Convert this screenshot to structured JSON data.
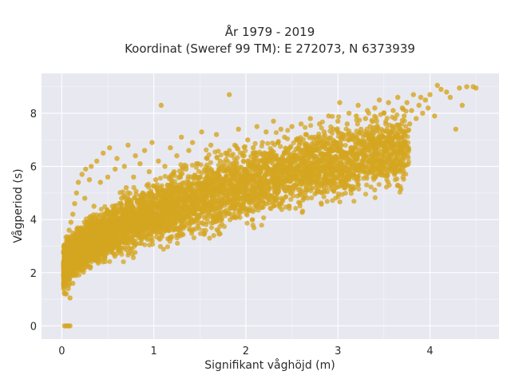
{
  "chart_data": {
    "type": "scatter",
    "title_lines": [
      "År 1979 - 2019",
      "Koordinat (Sweref 99 TM): E 272073, N 6373939"
    ],
    "xlabel": "Signifikant våghöjd (m)",
    "ylabel": "Vågperiod (s)",
    "xlim": [
      -0.22,
      4.75
    ],
    "ylim": [
      -0.5,
      9.5
    ],
    "x_ticks": [
      0,
      1,
      2,
      3,
      4
    ],
    "y_ticks": [
      0,
      2,
      4,
      6,
      8
    ],
    "grid": true,
    "background": "#e8e8f0",
    "grid_color": "#ffffff",
    "marker_color": "#d4a520",
    "relationship": "wave period rises steeply at low wave heights and levels off; dense cloud from ~1 to ~9 s",
    "points": [
      [
        0.02,
        1.55
      ],
      [
        0.03,
        2.1
      ],
      [
        0.04,
        1.8
      ],
      [
        0.05,
        2.6
      ],
      [
        0.05,
        1.2
      ],
      [
        0.06,
        3.2
      ],
      [
        0.07,
        1.4
      ],
      [
        0.08,
        3.6
      ],
      [
        0.08,
        2.2
      ],
      [
        0.09,
        1.05
      ],
      [
        0.1,
        3.9
      ],
      [
        0.1,
        2.8
      ],
      [
        0.12,
        4.2
      ],
      [
        0.12,
        1.6
      ],
      [
        0.14,
        4.6
      ],
      [
        0.15,
        3.1
      ],
      [
        0.16,
        5.0
      ],
      [
        0.17,
        2.2
      ],
      [
        0.18,
        5.4
      ],
      [
        0.2,
        3.5
      ],
      [
        0.22,
        5.7
      ],
      [
        0.23,
        2.6
      ],
      [
        0.25,
        4.8
      ],
      [
        0.26,
        5.9
      ],
      [
        0.28,
        3.2
      ],
      [
        0.3,
        5.5
      ],
      [
        0.32,
        6.0
      ],
      [
        0.33,
        3.6
      ],
      [
        0.35,
        4.5
      ],
      [
        0.38,
        6.2
      ],
      [
        0.4,
        3.9
      ],
      [
        0.42,
        5.4
      ],
      [
        0.45,
        6.5
      ],
      [
        0.48,
        4.2
      ],
      [
        0.5,
        5.6
      ],
      [
        0.52,
        6.7
      ],
      [
        0.55,
        4.5
      ],
      [
        0.58,
        5.9
      ],
      [
        0.6,
        6.3
      ],
      [
        0.62,
        3.1
      ],
      [
        0.65,
        4.8
      ],
      [
        0.68,
        6.0
      ],
      [
        0.7,
        5.2
      ],
      [
        0.72,
        6.8
      ],
      [
        0.75,
        3.6
      ],
      [
        0.78,
        5.6
      ],
      [
        0.8,
        6.4
      ],
      [
        0.82,
        4.7
      ],
      [
        0.85,
        6.1
      ],
      [
        0.88,
        5.0
      ],
      [
        0.9,
        6.6
      ],
      [
        0.92,
        4.0
      ],
      [
        0.95,
        5.8
      ],
      [
        0.98,
        6.9
      ],
      [
        1.0,
        4.6
      ],
      [
        1.02,
        5.5
      ],
      [
        1.05,
        6.2
      ],
      [
        1.08,
        8.3
      ],
      [
        1.1,
        4.8
      ],
      [
        1.12,
        6.0
      ],
      [
        1.15,
        5.3
      ],
      [
        1.18,
        6.7
      ],
      [
        1.2,
        4.6
      ],
      [
        1.22,
        5.8
      ],
      [
        1.25,
        6.4
      ],
      [
        1.28,
        5.0
      ],
      [
        1.3,
        7.1
      ],
      [
        1.32,
        4.4
      ],
      [
        1.35,
        5.9
      ],
      [
        1.38,
        6.6
      ],
      [
        1.4,
        5.2
      ],
      [
        1.42,
        6.9
      ],
      [
        1.45,
        4.8
      ],
      [
        1.48,
        6.1
      ],
      [
        1.5,
        5.6
      ],
      [
        1.52,
        7.3
      ],
      [
        1.55,
        4.6
      ],
      [
        1.58,
        6.3
      ],
      [
        1.6,
        5.4
      ],
      [
        1.62,
        6.8
      ],
      [
        1.65,
        5.1
      ],
      [
        1.68,
        7.2
      ],
      [
        1.7,
        5.7
      ],
      [
        1.72,
        6.2
      ],
      [
        1.75,
        5.0
      ],
      [
        1.78,
        6.5
      ],
      [
        1.8,
        5.9
      ],
      [
        1.82,
        8.7
      ],
      [
        1.85,
        5.3
      ],
      [
        1.88,
        6.8
      ],
      [
        1.9,
        6.1
      ],
      [
        1.92,
        7.4
      ],
      [
        1.95,
        5.6
      ],
      [
        1.98,
        6.4
      ],
      [
        2.0,
        5.9
      ],
      [
        2.02,
        7.0
      ],
      [
        2.05,
        5.4
      ],
      [
        2.08,
        6.7
      ],
      [
        2.1,
        6.2
      ],
      [
        2.12,
        7.5
      ],
      [
        2.15,
        5.8
      ],
      [
        2.18,
        6.9
      ],
      [
        2.2,
        6.3
      ],
      [
        2.22,
        7.3
      ],
      [
        2.25,
        5.9
      ],
      [
        2.28,
        6.6
      ],
      [
        2.3,
        7.7
      ],
      [
        2.32,
        6.0
      ],
      [
        2.35,
        6.9
      ],
      [
        2.38,
        7.4
      ],
      [
        2.4,
        6.3
      ],
      [
        2.42,
        7.1
      ],
      [
        2.45,
        5.9
      ],
      [
        2.48,
        6.7
      ],
      [
        2.5,
        7.5
      ],
      [
        2.52,
        6.4
      ],
      [
        2.55,
        7.0
      ],
      [
        2.58,
        6.8
      ],
      [
        2.6,
        7.6
      ],
      [
        2.62,
        6.3
      ],
      [
        2.65,
        7.2
      ],
      [
        2.68,
        6.6
      ],
      [
        2.7,
        7.8
      ],
      [
        2.72,
        6.5
      ],
      [
        2.75,
        7.1
      ],
      [
        2.78,
        6.9
      ],
      [
        2.8,
        7.6
      ],
      [
        2.82,
        6.2
      ],
      [
        2.85,
        7.3
      ],
      [
        2.88,
        7.0
      ],
      [
        2.9,
        7.9
      ],
      [
        2.92,
        6.6
      ],
      [
        2.95,
        7.4
      ],
      [
        2.98,
        6.8
      ],
      [
        3.0,
        7.7
      ],
      [
        3.02,
        8.4
      ],
      [
        3.05,
        7.1
      ],
      [
        3.08,
        6.5
      ],
      [
        3.1,
        7.6
      ],
      [
        3.12,
        8.0
      ],
      [
        3.15,
        7.2
      ],
      [
        3.18,
        6.7
      ],
      [
        3.2,
        7.9
      ],
      [
        3.22,
        8.3
      ],
      [
        3.25,
        7.4
      ],
      [
        3.28,
        6.3
      ],
      [
        3.3,
        7.8
      ],
      [
        3.32,
        8.1
      ],
      [
        3.35,
        7.5
      ],
      [
        3.38,
        6.9
      ],
      [
        3.4,
        8.2
      ],
      [
        3.42,
        7.7
      ],
      [
        3.45,
        8.5
      ],
      [
        3.48,
        7.1
      ],
      [
        3.5,
        8.0
      ],
      [
        3.52,
        7.6
      ],
      [
        3.55,
        8.4
      ],
      [
        3.58,
        7.3
      ],
      [
        3.6,
        8.1
      ],
      [
        3.62,
        7.8
      ],
      [
        3.65,
        8.6
      ],
      [
        3.68,
        7.4
      ],
      [
        3.7,
        8.2
      ],
      [
        3.72,
        7.9
      ],
      [
        3.75,
        8.4
      ],
      [
        3.78,
        7.6
      ],
      [
        3.8,
        8.1
      ],
      [
        3.82,
        8.7
      ],
      [
        3.85,
        7.8
      ],
      [
        3.88,
        8.3
      ],
      [
        3.9,
        8.6
      ],
      [
        3.92,
        8.0
      ],
      [
        3.95,
        8.5
      ],
      [
        3.98,
        8.2
      ],
      [
        4.0,
        8.7
      ],
      [
        4.05,
        7.9
      ],
      [
        4.08,
        9.05
      ],
      [
        4.12,
        8.9
      ],
      [
        4.18,
        8.8
      ],
      [
        4.22,
        8.6
      ],
      [
        4.28,
        7.4
      ],
      [
        4.32,
        8.95
      ],
      [
        4.35,
        8.3
      ],
      [
        4.4,
        9.0
      ],
      [
        4.47,
        9.0
      ],
      [
        4.5,
        8.95
      ],
      [
        0.03,
        0.0
      ],
      [
        0.05,
        0.0
      ],
      [
        0.07,
        0.0
      ],
      [
        0.09,
        0.0
      ]
    ]
  }
}
